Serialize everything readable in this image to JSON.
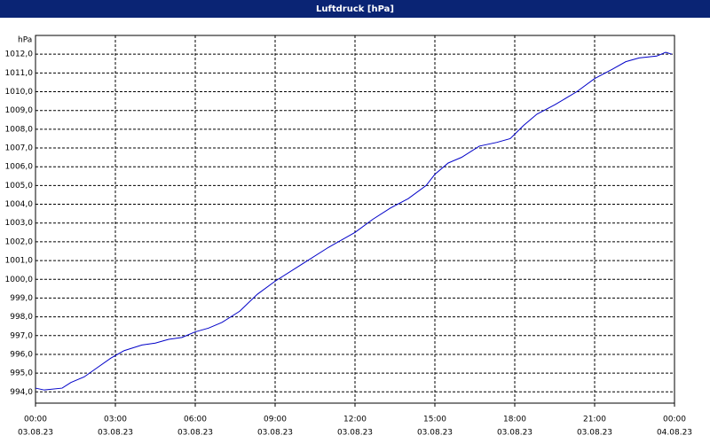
{
  "chart_data": {
    "type": "line",
    "title": "Luftdruck [hPa]",
    "y_label": "hPa",
    "x": [
      0,
      0.33,
      1.0,
      1.33,
      1.83,
      2.33,
      2.83,
      3.33,
      4.0,
      4.5,
      5.0,
      5.5,
      6.0,
      6.5,
      7.0,
      7.67,
      8.33,
      9.0,
      10.0,
      11.0,
      12.0,
      12.67,
      13.33,
      14.0,
      14.67,
      15.0,
      15.5,
      16.0,
      16.67,
      17.33,
      17.83,
      18.33,
      18.83,
      19.5,
      20.33,
      21.0,
      21.67,
      22.17,
      22.67,
      23.33,
      23.67,
      23.9
    ],
    "series": [
      {
        "name": "Luftdruck",
        "color": "#0000c8",
        "values": [
          994.2,
          994.1,
          994.2,
          994.5,
          994.8,
          995.3,
          995.8,
          996.2,
          996.5,
          996.6,
          996.8,
          996.9,
          997.2,
          997.4,
          997.7,
          998.3,
          999.2,
          999.9,
          1000.8,
          1001.7,
          1002.5,
          1003.2,
          1003.8,
          1004.3,
          1005.0,
          1005.6,
          1006.2,
          1006.5,
          1007.1,
          1007.3,
          1007.5,
          1008.2,
          1008.8,
          1009.3,
          1010.0,
          1010.7,
          1011.2,
          1011.6,
          1011.8,
          1011.9,
          1012.1,
          1012.0
        ]
      }
    ],
    "xlim": [
      0,
      24
    ],
    "xticks": [
      {
        "value": 0,
        "label": "00:00"
      },
      {
        "value": 3,
        "label": "03:00"
      },
      {
        "value": 6,
        "label": "06:00"
      },
      {
        "value": 9,
        "label": "09:00"
      },
      {
        "value": 12,
        "label": "12:00"
      },
      {
        "value": 15,
        "label": "15:00"
      },
      {
        "value": 18,
        "label": "18:00"
      },
      {
        "value": 21,
        "label": "21:00"
      },
      {
        "value": 24,
        "label": "00:00"
      }
    ],
    "xtick_dates": [
      "03.08.23",
      "03.08.23",
      "03.08.23",
      "03.08.23",
      "03.08.23",
      "03.08.23",
      "03.08.23",
      "03.08.23",
      "04.08.23"
    ],
    "ylim": [
      993.4,
      1013.0
    ],
    "yticks": [
      {
        "value": 994,
        "label": "994,0"
      },
      {
        "value": 995,
        "label": "995,0"
      },
      {
        "value": 996,
        "label": "996,0"
      },
      {
        "value": 997,
        "label": "997,0"
      },
      {
        "value": 998,
        "label": "998,0"
      },
      {
        "value": 999,
        "label": "999,0"
      },
      {
        "value": 1000,
        "label": "1000,0"
      },
      {
        "value": 1001,
        "label": "1001,0"
      },
      {
        "value": 1002,
        "label": "1002,0"
      },
      {
        "value": 1003,
        "label": "1003,0"
      },
      {
        "value": 1004,
        "label": "1004,0"
      },
      {
        "value": 1005,
        "label": "1005,0"
      },
      {
        "value": 1006,
        "label": "1006,0"
      },
      {
        "value": 1007,
        "label": "1007,0"
      },
      {
        "value": 1008,
        "label": "1008,0"
      },
      {
        "value": 1009,
        "label": "1009,0"
      },
      {
        "value": 1010,
        "label": "1010,0"
      },
      {
        "value": 1011,
        "label": "1011,0"
      },
      {
        "value": 1012,
        "label": "1012,0"
      }
    ],
    "grid": true
  }
}
